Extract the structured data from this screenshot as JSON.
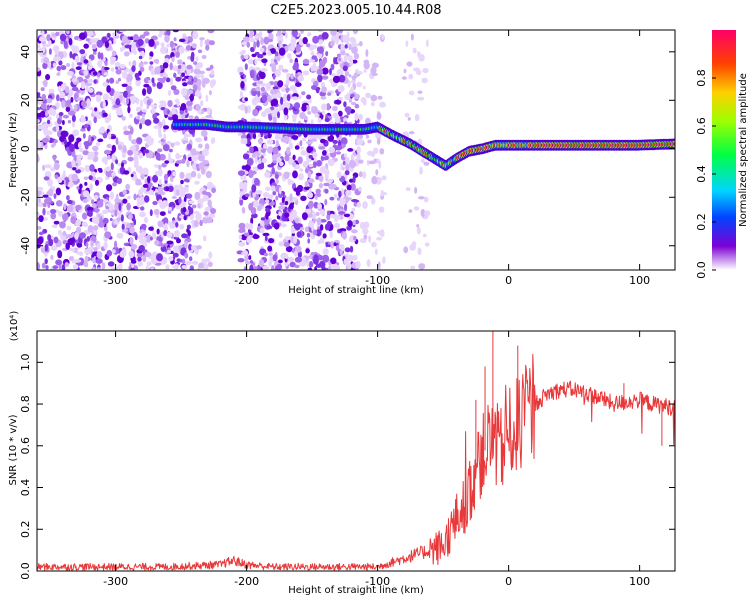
{
  "title": "C2E5.2023.005.10.44.R08",
  "chart_data": [
    {
      "type": "heatmap",
      "xlabel": "Height of straight line (km)",
      "ylabel": "Frequency (Hz)",
      "xlim": [
        -360,
        127
      ],
      "ylim": [
        -50,
        49
      ],
      "xticks": [
        -300,
        -200,
        -100,
        0,
        100
      ],
      "yticks": [
        -40,
        -20,
        0,
        20,
        40
      ],
      "ridge": {
        "x": [
          -255,
          -230,
          -215,
          -200,
          -150,
          -110,
          -100,
          -90,
          -75,
          -60,
          -48,
          -40,
          -30,
          -20,
          -10,
          0,
          15,
          50,
          100,
          127
        ],
        "y": [
          10,
          10,
          9,
          9,
          8,
          8,
          9,
          6,
          2,
          -3,
          -7,
          -4,
          -1,
          0,
          1.5,
          1.5,
          1.5,
          1.5,
          1.5,
          2
        ]
      },
      "colorbar": {
        "label": "Normalized spectral amplitude",
        "range": [
          0,
          1
        ],
        "ticks": [
          0.0,
          0.2,
          0.4,
          0.6,
          0.8
        ],
        "tick_labels": [
          "0.0",
          "0.2",
          "0.4",
          "0.6",
          "0.8"
        ]
      },
      "grid": false
    },
    {
      "type": "line",
      "xlabel": "Height of straight line (km)",
      "ylabel": "SNR (10 * v/v)",
      "scale_label": "(x10⁴)",
      "xlim": [
        -360,
        127
      ],
      "ylim": [
        0,
        1.15
      ],
      "xticks": [
        -300,
        -200,
        -100,
        0,
        100
      ],
      "yticks": [
        0.0,
        0.2,
        0.4,
        0.6,
        0.8,
        1.0
      ],
      "ytick_labels": [
        "0.0",
        "0.2",
        "0.4",
        "0.6",
        "0.8",
        "1.0"
      ],
      "series": [
        {
          "x": [
            -360,
            -330,
            -300,
            -260,
            -220,
            -210,
            -200,
            -180,
            -150,
            -120,
            -100,
            -90,
            -80,
            -70,
            -60,
            -50,
            -40,
            -30,
            -25,
            -20,
            -15,
            -10,
            -5,
            0,
            10,
            20,
            30,
            40,
            50,
            60,
            70,
            80,
            90,
            100,
            110,
            120,
            127
          ],
          "y": [
            0.02,
            0.02,
            0.02,
            0.02,
            0.03,
            0.05,
            0.03,
            0.02,
            0.02,
            0.02,
            0.02,
            0.04,
            0.06,
            0.08,
            0.1,
            0.12,
            0.25,
            0.35,
            0.5,
            0.55,
            0.62,
            0.6,
            0.58,
            0.65,
            0.72,
            0.8,
            0.85,
            0.87,
            0.87,
            0.85,
            0.83,
            0.8,
            0.81,
            0.82,
            0.8,
            0.79,
            0.78
          ]
        }
      ],
      "spikes": [
        {
          "x": -25,
          "y": 0.82
        },
        {
          "x": -12,
          "y": 1.15
        },
        {
          "x": -18,
          "y": 0.98
        },
        {
          "x": 7,
          "y": 1.08
        },
        {
          "x": 88,
          "y": 0.9
        },
        {
          "x": 117,
          "y": 0.6
        }
      ],
      "color": "#e8383a",
      "grid": false
    }
  ]
}
